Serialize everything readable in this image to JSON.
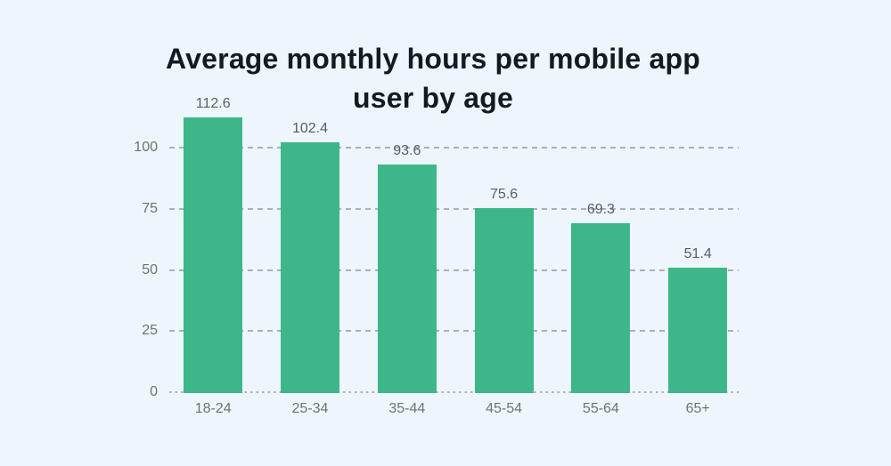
{
  "page": {
    "background_color": "#edf6fa"
  },
  "header": {
    "title_line1": "Average monthly hours per mobile app",
    "title_line2": "user by age"
  },
  "chart_data": {
    "type": "bar",
    "title": "Average monthly hours per mobile app user by age",
    "categories": [
      "18-24",
      "25-34",
      "35-44",
      "45-54",
      "55-64",
      "65+"
    ],
    "values": [
      112.6,
      102.4,
      93.6,
      75.6,
      69.3,
      51.4
    ],
    "value_labels": [
      "112.6",
      "102.4",
      "93.6",
      "75.6",
      "69.3",
      "51.4"
    ],
    "xlabel": "",
    "ylabel": "",
    "yticks": [
      0,
      25,
      50,
      75,
      100
    ],
    "ytick_labels": [
      "0",
      "25",
      "50",
      "75",
      "100"
    ],
    "ylim": [
      0,
      115
    ],
    "grid": "horizontal dashed gridlines, dotted baseline at 0",
    "legend_position": "none",
    "colors": {
      "bar": "#3db78a",
      "title": "#131a22",
      "value_label": "#575e66",
      "axis_label": "#6d7378",
      "gridline": "#aab1b8",
      "background": "#edf6fa"
    }
  }
}
